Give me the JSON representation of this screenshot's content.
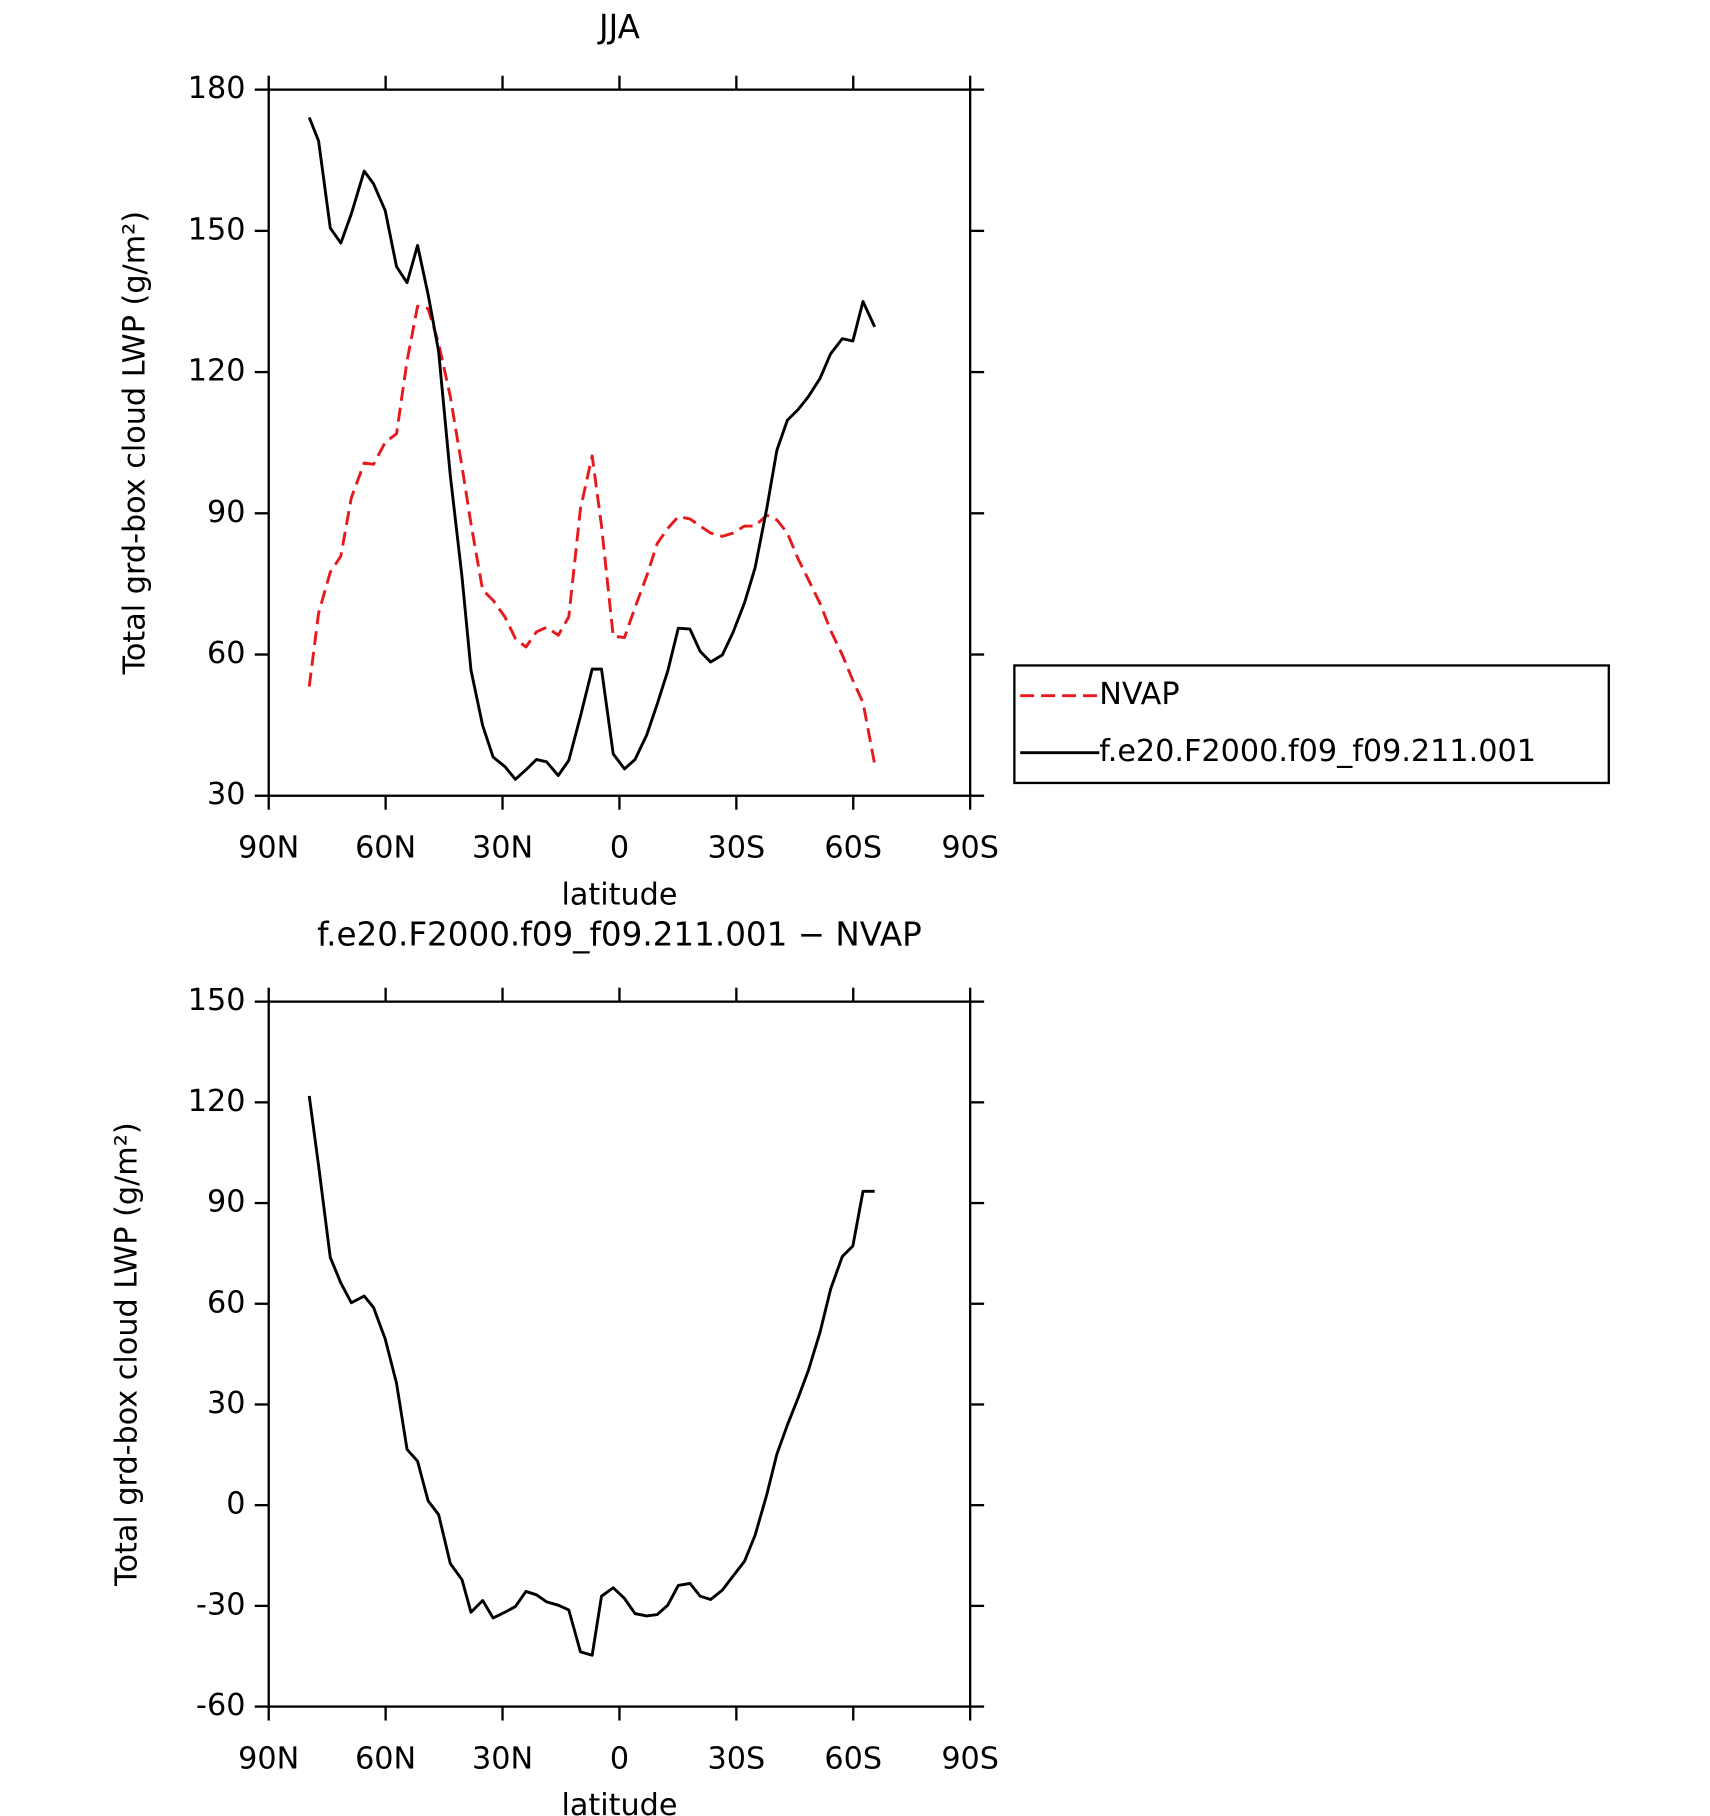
{
  "chart_data": [
    {
      "type": "line",
      "title": "JJA",
      "x_label": "latitude",
      "y_label": "Total grd-box cloud LWP (g/m²)",
      "x": [
        79.6,
        77.2,
        74.2,
        71.5,
        68.8,
        65.5,
        63.1,
        60.1,
        57.2,
        54.5,
        51.8,
        49.1,
        46.4,
        43.4,
        40.4,
        38.1,
        35.1,
        32.4,
        29.4,
        26.7,
        24.0,
        21.3,
        18.7,
        15.7,
        13.0,
        10.0,
        7.0,
        4.6,
        1.6,
        -1.3,
        -4.0,
        -7.0,
        -9.7,
        -12.4,
        -15.1,
        -18.1,
        -20.7,
        -23.4,
        -26.4,
        -29.1,
        -32.1,
        -34.8,
        -37.8,
        -40.4,
        -43.1,
        -45.8,
        -48.5,
        -51.5,
        -54.2,
        -57.2,
        -59.9,
        -62.5,
        -65.5
      ],
      "xlim": [
        90,
        -90
      ],
      "xticks": [
        {
          "value": 90,
          "label": "90N"
        },
        {
          "value": 60,
          "label": "60N"
        },
        {
          "value": 30,
          "label": "30N"
        },
        0,
        {
          "value": -30,
          "label": "30S"
        },
        {
          "value": -60,
          "label": "60S"
        },
        {
          "value": -90,
          "label": "90S"
        }
      ],
      "ylim": [
        30,
        180
      ],
      "yticks": [
        30,
        60,
        90,
        120,
        150,
        180
      ],
      "legend": "outside right",
      "series": [
        {
          "name": "NVAP",
          "color": "#e8191c",
          "linestyle": "dashed",
          "values": [
            53.2,
            68.8,
            77.5,
            80.9,
            93.3,
            100.7,
            100.4,
            105.1,
            106.9,
            122.4,
            134.0,
            133.5,
            126.1,
            114.8,
            99.9,
            87.8,
            73.7,
            71.5,
            68.0,
            63.4,
            61.6,
            64.8,
            65.8,
            64.1,
            68.0,
            91.0,
            102.2,
            87.3,
            63.9,
            63.6,
            70.0,
            76.7,
            83.6,
            86.8,
            89.3,
            88.8,
            87.3,
            85.8,
            85.1,
            85.8,
            87.3,
            87.3,
            89.6,
            88.6,
            85.8,
            80.4,
            75.9,
            70.8,
            65.1,
            59.9,
            54.5,
            49.8,
            36.7
          ]
        },
        {
          "name": "f.e20.F2000.f09_f09.211.001",
          "color": "#000000",
          "linestyle": "solid",
          "values": [
            174.1,
            169.1,
            150.6,
            147.4,
            153.6,
            162.7,
            160.0,
            154.3,
            142.4,
            139.0,
            146.9,
            136.5,
            124.4,
            98.0,
            76.5,
            56.7,
            44.9,
            38.2,
            36.2,
            33.5,
            35.5,
            37.7,
            37.2,
            34.3,
            37.5,
            46.9,
            56.9,
            56.9,
            38.9,
            35.7,
            37.7,
            42.9,
            49.5,
            56.5,
            65.6,
            65.4,
            60.7,
            58.4,
            59.9,
            64.6,
            71.0,
            78.4,
            91.0,
            103.4,
            109.8,
            112.0,
            114.8,
            118.7,
            123.9,
            127.1,
            126.6,
            135.0,
            129.6
          ]
        }
      ]
    },
    {
      "type": "line",
      "title": "f.e20.F2000.f09_f09.211.001 − NVAP",
      "x_label": "latitude",
      "y_label": "Total grd-box cloud LWP (g/m²)",
      "x": [
        79.6,
        77.2,
        74.2,
        71.5,
        68.8,
        65.5,
        63.1,
        60.1,
        57.2,
        54.5,
        51.8,
        49.1,
        46.4,
        43.4,
        40.4,
        38.1,
        35.1,
        32.4,
        29.4,
        26.7,
        24.0,
        21.3,
        18.7,
        15.7,
        13.0,
        10.0,
        7.0,
        4.6,
        1.6,
        -1.3,
        -4.0,
        -7.0,
        -9.7,
        -12.4,
        -15.1,
        -18.1,
        -20.7,
        -23.4,
        -26.4,
        -29.1,
        -32.1,
        -34.8,
        -37.8,
        -40.4,
        -43.1,
        -45.8,
        -48.5,
        -51.5,
        -54.2,
        -57.2,
        -59.9,
        -62.5,
        -65.5
      ],
      "xlim": [
        90,
        -90
      ],
      "xticks": [
        {
          "value": 90,
          "label": "90N"
        },
        {
          "value": 60,
          "label": "60N"
        },
        {
          "value": 30,
          "label": "30N"
        },
        0,
        {
          "value": -30,
          "label": "30S"
        },
        {
          "value": -60,
          "label": "60S"
        },
        {
          "value": -90,
          "label": "90S"
        }
      ],
      "ylim": [
        -60,
        150
      ],
      "yticks": [
        -60,
        -30,
        0,
        30,
        60,
        90,
        120,
        150
      ],
      "series": [
        {
          "color": "#000000",
          "linestyle": "solid",
          "values": [
            121.9,
            101.1,
            73.8,
            66.2,
            60.3,
            62.3,
            58.9,
            49.5,
            36.3,
            16.6,
            13.1,
            1.3,
            -2.8,
            -17.4,
            -22.2,
            -31.9,
            -28.4,
            -33.6,
            -31.9,
            -30.2,
            -25.7,
            -26.7,
            -28.8,
            -29.8,
            -31.2,
            -43.7,
            -44.7,
            -27.1,
            -24.6,
            -27.8,
            -32.3,
            -33.0,
            -32.6,
            -29.8,
            -23.9,
            -23.3,
            -27.1,
            -28.1,
            -25.3,
            -21.2,
            -16.7,
            -9.0,
            3.1,
            15.2,
            23.9,
            31.8,
            40.2,
            51.6,
            64.4,
            74.1,
            77.2,
            93.5,
            93.5
          ]
        }
      ]
    }
  ]
}
